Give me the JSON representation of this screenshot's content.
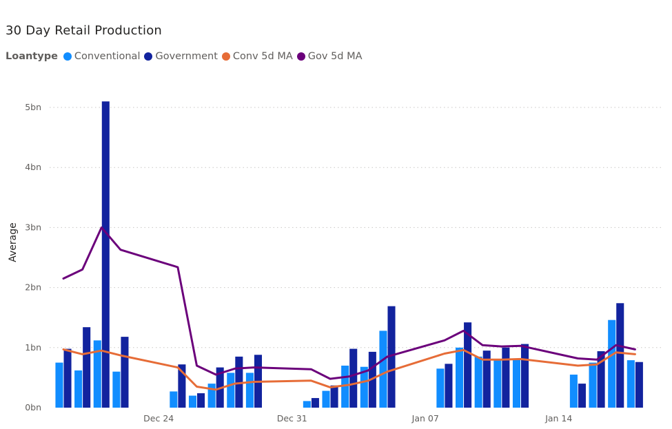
{
  "chart_data": {
    "type": "bar",
    "title": "30 Day Retail Production",
    "legend": {
      "title": "Loantype",
      "position": "top-left",
      "entries": [
        {
          "name": "Conventional",
          "color": "#118dff"
        },
        {
          "name": "Government",
          "color": "#12239e"
        },
        {
          "name": "Conv 5d MA",
          "color": "#e66c37"
        },
        {
          "name": "Gov 5d MA",
          "color": "#6b007b"
        }
      ]
    },
    "ylabel": "Average",
    "ylim": [
      0,
      5
    ],
    "yticks": [
      0,
      1,
      2,
      3,
      4,
      5
    ],
    "ytick_labels": [
      "0bn",
      "1bn",
      "2bn",
      "3bn",
      "4bn",
      "5bn"
    ],
    "grid": true,
    "x_tick_labels": [
      {
        "label": "Dec 24",
        "date": "2023-12-24"
      },
      {
        "label": "Dec 31",
        "date": "2023-12-31"
      },
      {
        "label": "Jan 07",
        "date": "2024-01-07"
      },
      {
        "label": "Jan 14",
        "date": "2024-01-14"
      }
    ],
    "x_range": [
      "2023-12-19",
      "2024-01-19"
    ],
    "unit": "bn",
    "x": [
      "2023-12-19",
      "2023-12-20",
      "2023-12-21",
      "2023-12-22",
      "2023-12-25",
      "2023-12-26",
      "2023-12-27",
      "2023-12-28",
      "2023-12-29",
      "2024-01-01",
      "2024-01-02",
      "2024-01-03",
      "2024-01-04",
      "2024-01-05",
      "2024-01-08",
      "2024-01-09",
      "2024-01-10",
      "2024-01-11",
      "2024-01-12",
      "2024-01-15",
      "2024-01-16",
      "2024-01-17",
      "2024-01-18",
      "2024-01-19"
    ],
    "series": [
      {
        "name": "Conventional",
        "type": "bar",
        "color": "#118dff",
        "values": [
          0.75,
          0.62,
          1.12,
          0.6,
          0.27,
          0.2,
          0.4,
          0.58,
          0.58,
          0.11,
          0.28,
          0.7,
          0.68,
          1.28,
          0.65,
          1.0,
          0.85,
          0.8,
          0.8,
          0.55,
          0.75,
          1.46,
          0.79,
          null
        ]
      },
      {
        "name": "Government",
        "type": "bar",
        "color": "#12239e",
        "values": [
          0.98,
          1.34,
          5.1,
          1.18,
          0.72,
          0.24,
          0.67,
          0.85,
          0.88,
          0.16,
          0.37,
          0.98,
          0.93,
          1.69,
          0.73,
          1.42,
          0.95,
          1.0,
          1.06,
          0.4,
          0.94,
          1.74,
          0.76,
          null
        ]
      },
      {
        "name": "Conv 5d MA",
        "type": "line",
        "color": "#e66c37",
        "values": [
          0.97,
          0.89,
          0.95,
          0.87,
          0.67,
          0.35,
          0.3,
          0.4,
          0.43,
          0.45,
          0.34,
          0.38,
          0.45,
          0.6,
          0.9,
          0.96,
          0.8,
          0.8,
          0.81,
          0.7,
          0.72,
          0.92,
          0.89,
          null
        ]
      },
      {
        "name": "Gov 5d MA",
        "type": "line",
        "color": "#6b007b",
        "values": [
          2.15,
          2.3,
          3.0,
          2.63,
          2.34,
          0.7,
          0.55,
          0.65,
          0.67,
          0.64,
          0.48,
          0.52,
          0.62,
          0.85,
          1.12,
          1.28,
          1.04,
          1.02,
          1.03,
          0.82,
          0.8,
          1.04,
          0.97,
          null
        ]
      }
    ]
  }
}
